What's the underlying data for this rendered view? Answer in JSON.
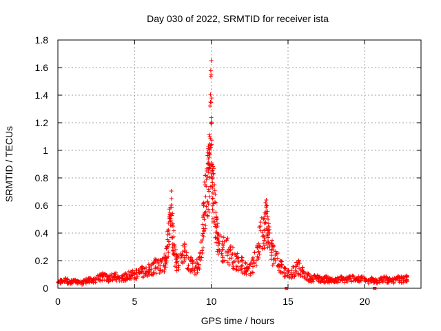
{
  "chart_data": {
    "type": "scatter",
    "title": "Day 030 of 2022, SRMTID for receiver ista",
    "xlabel": "GPS time / hours",
    "ylabel": "SRMTID / TECUs",
    "xlim": [
      0,
      23.667
    ],
    "ylim": [
      0,
      1.8
    ],
    "xticks": [
      "0",
      "5",
      "10",
      "15",
      "20"
    ],
    "xtick_values": [
      0,
      5,
      10,
      15,
      20
    ],
    "yticks": [
      "0",
      "0.2",
      "0.4",
      "0.6",
      "0.8",
      "1",
      "1.2",
      "1.4",
      "1.6",
      "1.8"
    ],
    "ytick_values": [
      0,
      0.2,
      0.4,
      0.6,
      0.8,
      1.0,
      1.2,
      1.4,
      1.6,
      1.8
    ],
    "grid": true,
    "marker": "plus",
    "color": "#ff0000",
    "series": [
      {
        "name": "SRMTID",
        "x": [
          0.0,
          0.25,
          0.5,
          0.75,
          1.0,
          1.25,
          1.5,
          1.75,
          2.0,
          2.25,
          2.5,
          2.75,
          3.0,
          3.25,
          3.5,
          3.75,
          4.0,
          4.25,
          4.5,
          4.75,
          5.0,
          5.25,
          5.5,
          5.75,
          6.0,
          6.25,
          6.5,
          6.75,
          7.0,
          7.1,
          7.2,
          7.3,
          7.4,
          7.5,
          7.6,
          7.75,
          8.0,
          8.25,
          8.5,
          8.75,
          9.0,
          9.2,
          9.4,
          9.5,
          9.6,
          9.7,
          9.8,
          9.85,
          9.9,
          9.95,
          10.0,
          10.05,
          10.1,
          10.2,
          10.3,
          10.4,
          10.5,
          10.75,
          11.0,
          11.25,
          11.5,
          11.75,
          12.0,
          12.25,
          12.5,
          12.75,
          13.0,
          13.2,
          13.4,
          13.5,
          13.6,
          13.7,
          13.8,
          14.0,
          14.25,
          14.5,
          14.75,
          15.0,
          15.25,
          15.5,
          15.75,
          16.0,
          16.25,
          16.5,
          16.75,
          17.0,
          17.25,
          17.5,
          17.75,
          18.0,
          18.25,
          18.5,
          18.75,
          19.0,
          19.25,
          19.5,
          19.75,
          20.0,
          20.25,
          20.5,
          20.75,
          21.0,
          21.25,
          21.5,
          21.75,
          22.0,
          22.25,
          22.5,
          22.75
        ],
        "y": [
          0.04,
          0.06,
          0.07,
          0.05,
          0.06,
          0.05,
          0.04,
          0.06,
          0.07,
          0.06,
          0.08,
          0.09,
          0.1,
          0.08,
          0.09,
          0.1,
          0.08,
          0.09,
          0.1,
          0.12,
          0.11,
          0.13,
          0.14,
          0.15,
          0.16,
          0.18,
          0.2,
          0.19,
          0.22,
          0.3,
          0.42,
          0.55,
          0.65,
          0.45,
          0.3,
          0.22,
          0.25,
          0.3,
          0.22,
          0.2,
          0.18,
          0.22,
          0.35,
          0.6,
          0.75,
          0.85,
          0.9,
          0.95,
          1.1,
          1.35,
          1.65,
          0.85,
          0.8,
          0.75,
          0.55,
          0.45,
          0.38,
          0.32,
          0.35,
          0.28,
          0.25,
          0.22,
          0.2,
          0.18,
          0.16,
          0.2,
          0.3,
          0.45,
          0.5,
          0.55,
          0.6,
          0.5,
          0.4,
          0.3,
          0.25,
          0.2,
          0.15,
          0.12,
          0.13,
          0.16,
          0.18,
          0.12,
          0.1,
          0.08,
          0.09,
          0.08,
          0.07,
          0.08,
          0.07,
          0.06,
          0.07,
          0.08,
          0.07,
          0.08,
          0.09,
          0.07,
          0.08,
          0.07,
          0.06,
          0.07,
          0.06,
          0.07,
          0.08,
          0.07,
          0.06,
          0.07,
          0.08,
          0.07,
          0.08
        ]
      }
    ]
  }
}
